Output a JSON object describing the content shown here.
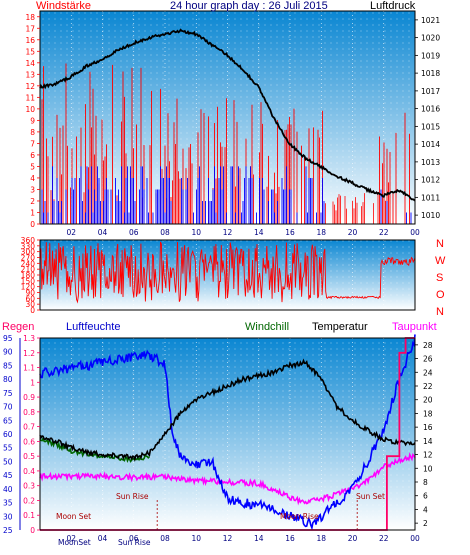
{
  "header": {
    "title": "24 hour graph day : 26 Juli 2015",
    "left_label": "Windstärke",
    "right_label": "Luftdruck"
  },
  "colors": {
    "panel_top": "#0a86d2",
    "panel_bottom": "#ffffff",
    "wind_speed": "#ff0000",
    "wind_gust": "#0000ff",
    "pressure": "#000000",
    "humidity": "#0000ff",
    "temperature": "#000000",
    "windchill": "#006600",
    "dewpoint": "#ff00ff",
    "rain": "#ff0066",
    "sun_text": "#aa0000"
  },
  "labels": {
    "regen": "Regen",
    "luftfeuchte": "Luftfeuchte",
    "windchill": "Windchill",
    "temperatur": "Temperatur",
    "taupunkt": "Taupunkt",
    "dir_n": "N",
    "dir_w": "W",
    "dir_s": "S",
    "dir_o": "O",
    "dir_n2": "N"
  },
  "annotations": {
    "moon_set": "Moon Set",
    "sun_rise": "Sun Rise",
    "moon_rise": "Moon Rise",
    "sun_set": "Sun Set",
    "bottom_moonset": "MoonSet",
    "bottom_sunrise": "Sun Rise"
  },
  "chart_data": [
    {
      "type": "line",
      "title": "24 hour graph day : 26 Juli 2015",
      "x_ticks": [
        "02",
        "04",
        "06",
        "08",
        "10",
        "12",
        "14",
        "16",
        "18",
        "20",
        "22",
        "00"
      ],
      "left_axis": {
        "label": "Windstärke",
        "ticks": [
          0,
          1,
          2,
          3,
          4,
          5,
          6,
          7,
          8,
          9,
          10,
          11,
          12,
          13,
          14,
          15,
          16,
          17,
          18
        ],
        "range": [
          0,
          18.5
        ]
      },
      "right_axis": {
        "label": "Luftdruck",
        "ticks": [
          1010,
          1011,
          1012,
          1013,
          1014,
          1015,
          1016,
          1017,
          1018,
          1019,
          1020,
          1021
        ],
        "range": [
          1009.5,
          1021.5
        ]
      },
      "series": [
        {
          "name": "Luftdruck",
          "axis": "right",
          "x": [
            0,
            1,
            2,
            3,
            4,
            5,
            6,
            7,
            8,
            9,
            10,
            11,
            12,
            13,
            14,
            15,
            16,
            17,
            18,
            19,
            20,
            21,
            22,
            23,
            24
          ],
          "values": [
            1017.2,
            1017.4,
            1017.8,
            1018.4,
            1018.8,
            1019.3,
            1019.7,
            1020.0,
            1020.2,
            1020.4,
            1020.2,
            1019.6,
            1019.0,
            1018.2,
            1017.2,
            1015.4,
            1014.0,
            1013.2,
            1012.7,
            1012.2,
            1011.8,
            1011.4,
            1011.1,
            1011.4,
            1010.8
          ]
        }
      ]
    },
    {
      "type": "line",
      "title": "",
      "left_axis": {
        "ticks": [
          0,
          30,
          60,
          90,
          120,
          150,
          180,
          210,
          240,
          270,
          300,
          330,
          360
        ],
        "range": [
          0,
          360
        ]
      },
      "right_labels": [
        "N",
        "W",
        "S",
        "O",
        "N"
      ]
    },
    {
      "type": "line",
      "title": "",
      "legend": [
        "Regen",
        "Luftfeuchte",
        "Windchill",
        "Temperatur",
        "Taupunkt"
      ],
      "rain_axis": {
        "label": "Regen",
        "ticks": [
          0,
          0.1,
          0.2,
          0.3,
          0.4,
          0.5,
          0.6,
          0.7,
          0.8,
          0.9,
          1,
          1.1,
          1.2,
          1.3
        ],
        "range": [
          0,
          1.3
        ]
      },
      "humidity_axis": {
        "label": "Luftfeuchte",
        "ticks": [
          25,
          30,
          35,
          40,
          45,
          50,
          55,
          60,
          65,
          70,
          75,
          80,
          85,
          90,
          95
        ],
        "range": [
          25,
          95
        ]
      },
      "temperature_axis": {
        "label": "Temperatur",
        "ticks": [
          2,
          4,
          6,
          8,
          10,
          12,
          14,
          16,
          18,
          20,
          22,
          24,
          26,
          28
        ],
        "range": [
          1,
          29
        ]
      },
      "series": [
        {
          "name": "Luftfeuchte",
          "axis": "humidity",
          "x": [
            0,
            2,
            4,
            6,
            7,
            8,
            8.5,
            9,
            10,
            11,
            12,
            13,
            14,
            15,
            16,
            17,
            17.5,
            18,
            19,
            20,
            21,
            22,
            23,
            24
          ],
          "values": [
            82,
            84,
            86,
            88,
            89,
            85,
            60,
            52,
            49,
            50,
            36,
            35,
            34,
            33,
            30,
            28,
            27,
            30,
            35,
            40,
            50,
            62,
            80,
            95
          ]
        },
        {
          "name": "Temperatur",
          "axis": "temperature",
          "x": [
            0,
            1,
            2,
            3,
            4,
            5,
            6,
            7,
            8,
            9,
            10,
            11,
            12,
            13,
            14,
            15,
            16,
            17,
            18,
            19,
            20,
            21,
            22,
            23,
            24
          ],
          "values": [
            14.5,
            14,
            13,
            12.4,
            12,
            11.8,
            11.6,
            12.2,
            15,
            18,
            20,
            21,
            22,
            23,
            23.5,
            24,
            25,
            25.5,
            23,
            19,
            17,
            15.5,
            14.2,
            13.7,
            13.6
          ]
        },
        {
          "name": "Windchill",
          "axis": "temperature",
          "x": [
            0,
            1,
            2,
            3,
            4,
            5,
            6,
            7
          ],
          "values": [
            14.3,
            13.5,
            12.5,
            12,
            11.8,
            11.5,
            11.2,
            11.8
          ]
        },
        {
          "name": "Taupunkt",
          "axis": "temperature",
          "x": [
            0,
            2,
            4,
            6,
            8,
            10,
            12,
            14,
            16,
            17,
            18,
            19,
            20,
            21,
            22,
            23,
            24
          ],
          "values": [
            8.8,
            8.8,
            8.8,
            8.7,
            8.8,
            8.2,
            8,
            7.8,
            5.8,
            5,
            5.5,
            6.2,
            7,
            8.2,
            10.2,
            11.2,
            11.8
          ]
        },
        {
          "name": "Regen",
          "axis": "rain",
          "x": [
            0,
            21.8,
            22.2,
            22.6,
            23,
            23.4,
            24
          ],
          "values": [
            0,
            0,
            0.5,
            0.5,
            1.2,
            1.3,
            1.3
          ]
        }
      ]
    }
  ]
}
